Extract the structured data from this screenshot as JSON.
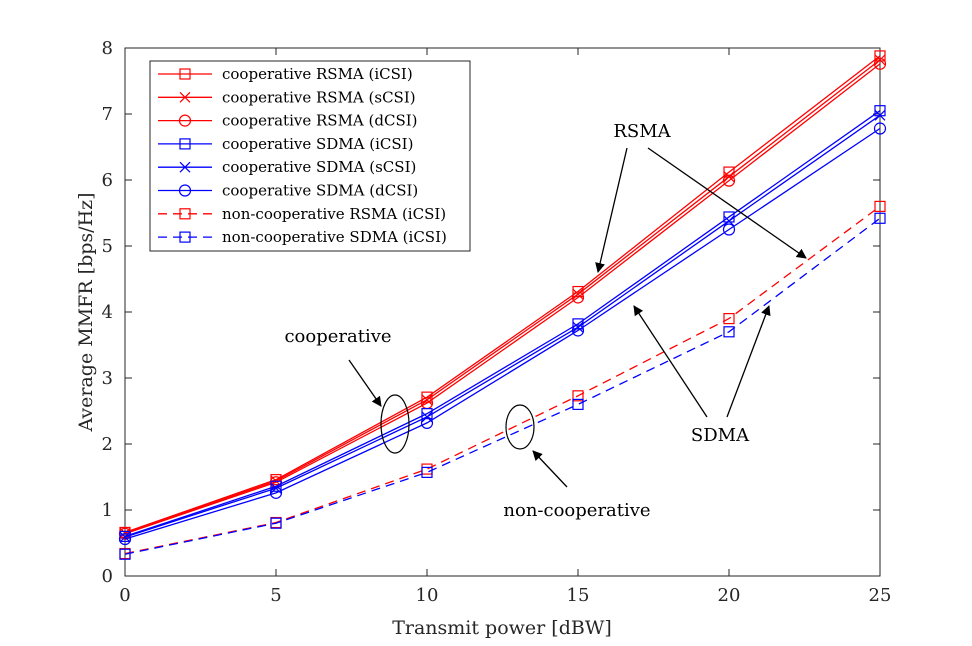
{
  "chart_data": {
    "type": "line",
    "xlabel": "Transmit power [dBW]",
    "ylabel": "Average MMFR [bps/Hz]",
    "xlim": [
      0,
      25
    ],
    "ylim": [
      0,
      8
    ],
    "xticks": [
      0,
      5,
      10,
      15,
      20,
      25
    ],
    "yticks": [
      0,
      1,
      2,
      3,
      4,
      5,
      6,
      7,
      8
    ],
    "grid": false,
    "legend_position": "top-left",
    "x": [
      0,
      5,
      10,
      15,
      20,
      25
    ],
    "series": [
      {
        "name": "cooperative RSMA (iCSI)",
        "color": "#ff0000",
        "dash": "solid",
        "marker": "square",
        "values": [
          0.66,
          1.46,
          2.71,
          4.31,
          6.12,
          7.88
        ]
      },
      {
        "name": "cooperative RSMA (sCSI)",
        "color": "#ff0000",
        "dash": "solid",
        "marker": "x",
        "values": [
          0.65,
          1.44,
          2.67,
          4.27,
          6.05,
          7.82
        ]
      },
      {
        "name": "cooperative RSMA (dCSI)",
        "color": "#ff0000",
        "dash": "solid",
        "marker": "circle",
        "values": [
          0.64,
          1.42,
          2.62,
          4.22,
          5.99,
          7.76
        ]
      },
      {
        "name": "cooperative SDMA (iCSI)",
        "color": "#0000ff",
        "dash": "solid",
        "marker": "square",
        "values": [
          0.6,
          1.36,
          2.46,
          3.82,
          5.44,
          7.05
        ]
      },
      {
        "name": "cooperative SDMA (sCSI)",
        "color": "#0000ff",
        "dash": "solid",
        "marker": "x",
        "values": [
          0.59,
          1.33,
          2.41,
          3.77,
          5.38,
          6.98
        ]
      },
      {
        "name": "cooperative SDMA (dCSI)",
        "color": "#0000ff",
        "dash": "solid",
        "marker": "circle",
        "values": [
          0.56,
          1.26,
          2.32,
          3.72,
          5.25,
          6.78
        ]
      },
      {
        "name": "non-cooperative RSMA (iCSI)",
        "color": "#ff0000",
        "dash": "dashed",
        "marker": "square",
        "values": [
          0.34,
          0.81,
          1.62,
          2.73,
          3.9,
          5.6
        ]
      },
      {
        "name": "non-cooperative SDMA (iCSI)",
        "color": "#0000ff",
        "dash": "dashed",
        "marker": "square",
        "values": [
          0.33,
          0.8,
          1.57,
          2.6,
          3.7,
          5.42
        ]
      }
    ],
    "annotations": [
      {
        "id": "cooperative",
        "text": "cooperative"
      },
      {
        "id": "non-cooperative",
        "text": "non-cooperative"
      },
      {
        "id": "rsma",
        "text": "RSMA"
      },
      {
        "id": "sdma",
        "text": "SDMA"
      }
    ]
  }
}
